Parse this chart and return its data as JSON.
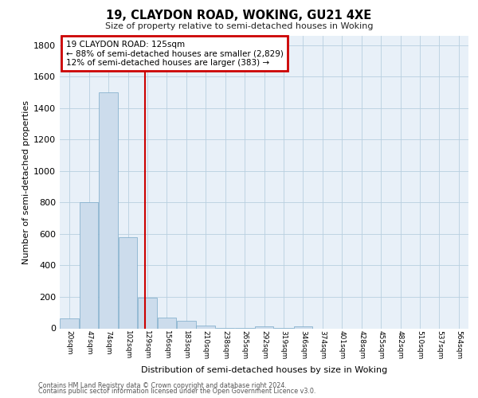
{
  "title": "19, CLAYDON ROAD, WOKING, GU21 4XE",
  "subtitle": "Size of property relative to semi-detached houses in Woking",
  "xlabel": "Distribution of semi-detached houses by size in Woking",
  "ylabel": "Number of semi-detached properties",
  "footnote1": "Contains HM Land Registry data © Crown copyright and database right 2024.",
  "footnote2": "Contains public sector information licensed under the Open Government Licence v3.0.",
  "bar_color": "#ccdcec",
  "bar_edge_color": "#7aaac8",
  "grid_color": "#b8cfe0",
  "vline_color": "#cc0000",
  "vline_x": 125,
  "annotation_line1": "19 CLAYDON ROAD: 125sqm",
  "annotation_line2": "← 88% of semi-detached houses are smaller (2,829)",
  "annotation_line3": "12% of semi-detached houses are larger (383) →",
  "bin_labels": [
    "20sqm",
    "47sqm",
    "74sqm",
    "102sqm",
    "129sqm",
    "156sqm",
    "183sqm",
    "210sqm",
    "238sqm",
    "265sqm",
    "292sqm",
    "319sqm",
    "346sqm",
    "374sqm",
    "401sqm",
    "428sqm",
    "455sqm",
    "482sqm",
    "510sqm",
    "537sqm",
    "564sqm"
  ],
  "bin_edges": [
    6.5,
    33.5,
    60.5,
    87.5,
    114.5,
    141.5,
    168.5,
    195.5,
    222.5,
    249.5,
    276.5,
    303.5,
    330.5,
    357.5,
    384.5,
    411.5,
    438.5,
    465.5,
    492.5,
    519.5,
    546.5,
    573.5
  ],
  "bar_heights": [
    65,
    800,
    1500,
    580,
    195,
    70,
    47,
    20,
    3,
    3,
    15,
    3,
    15,
    0,
    0,
    0,
    0,
    0,
    0,
    0,
    0
  ],
  "ylim": [
    0,
    1860
  ],
  "yticks": [
    0,
    200,
    400,
    600,
    800,
    1000,
    1200,
    1400,
    1600,
    1800
  ],
  "background_color": "#ffffff",
  "plot_bg_color": "#e8f0f8"
}
